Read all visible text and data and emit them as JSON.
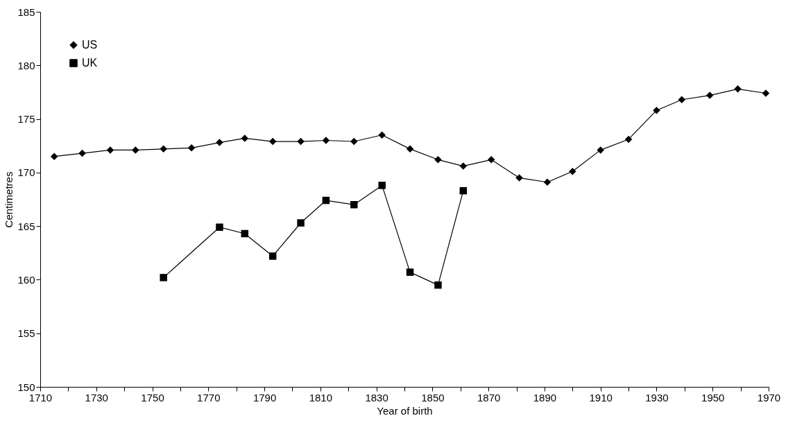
{
  "chart_data": {
    "type": "line",
    "xlabel": "Year of birth",
    "ylabel": "Centimetres",
    "xlim": [
      1710,
      1970
    ],
    "ylim": [
      150,
      185
    ],
    "xticks": [
      1710,
      {
        "value": 1720,
        "label": null
      },
      1730,
      {
        "value": 1740,
        "label": null
      },
      1750,
      {
        "value": 1760,
        "label": null
      },
      1770,
      {
        "value": 1780,
        "label": null
      },
      1790,
      {
        "value": 1800,
        "label": null
      },
      1810,
      {
        "value": 1820,
        "label": null
      },
      1830,
      {
        "value": 1840,
        "label": null
      },
      1850,
      {
        "value": 1860,
        "label": null
      },
      1870,
      {
        "value": 1880,
        "label": null
      },
      1890,
      {
        "value": 1900,
        "label": null
      },
      1910,
      {
        "value": 1920,
        "label": null
      },
      1930,
      {
        "value": 1940,
        "label": null
      },
      1950,
      {
        "value": 1960,
        "label": null
      },
      1970
    ],
    "yticks": [
      150,
      155,
      160,
      165,
      170,
      175,
      180,
      185
    ],
    "grid": false,
    "legend": "top left",
    "line_style": "solid",
    "series": [
      {
        "name": "US",
        "color": "#000000",
        "marker": "diamond",
        "x": [
          1715,
          1725,
          1735,
          1744,
          1754,
          1764,
          1774,
          1783,
          1793,
          1803,
          1812,
          1822,
          1832,
          1842,
          1852,
          1861,
          1871,
          1881,
          1891,
          1900,
          1910,
          1920,
          1930,
          1939,
          1949,
          1959,
          1969
        ],
        "values": [
          171.5,
          171.8,
          172.1,
          172.1,
          172.2,
          172.3,
          172.8,
          173.2,
          172.9,
          172.9,
          173.0,
          172.9,
          173.5,
          172.2,
          171.2,
          170.6,
          171.2,
          169.5,
          169.1,
          170.1,
          172.1,
          173.1,
          175.8,
          176.8,
          177.2,
          177.8,
          177.4
        ]
      },
      {
        "name": "UK",
        "color": "#000000",
        "marker": "square",
        "x": [
          1754,
          1774,
          1783,
          1793,
          1803,
          1812,
          1822,
          1832,
          1842,
          1852,
          1861
        ],
        "values": [
          160.2,
          164.9,
          164.3,
          162.2,
          165.3,
          167.4,
          167.0,
          168.8,
          160.7,
          159.5,
          168.3
        ]
      }
    ]
  }
}
